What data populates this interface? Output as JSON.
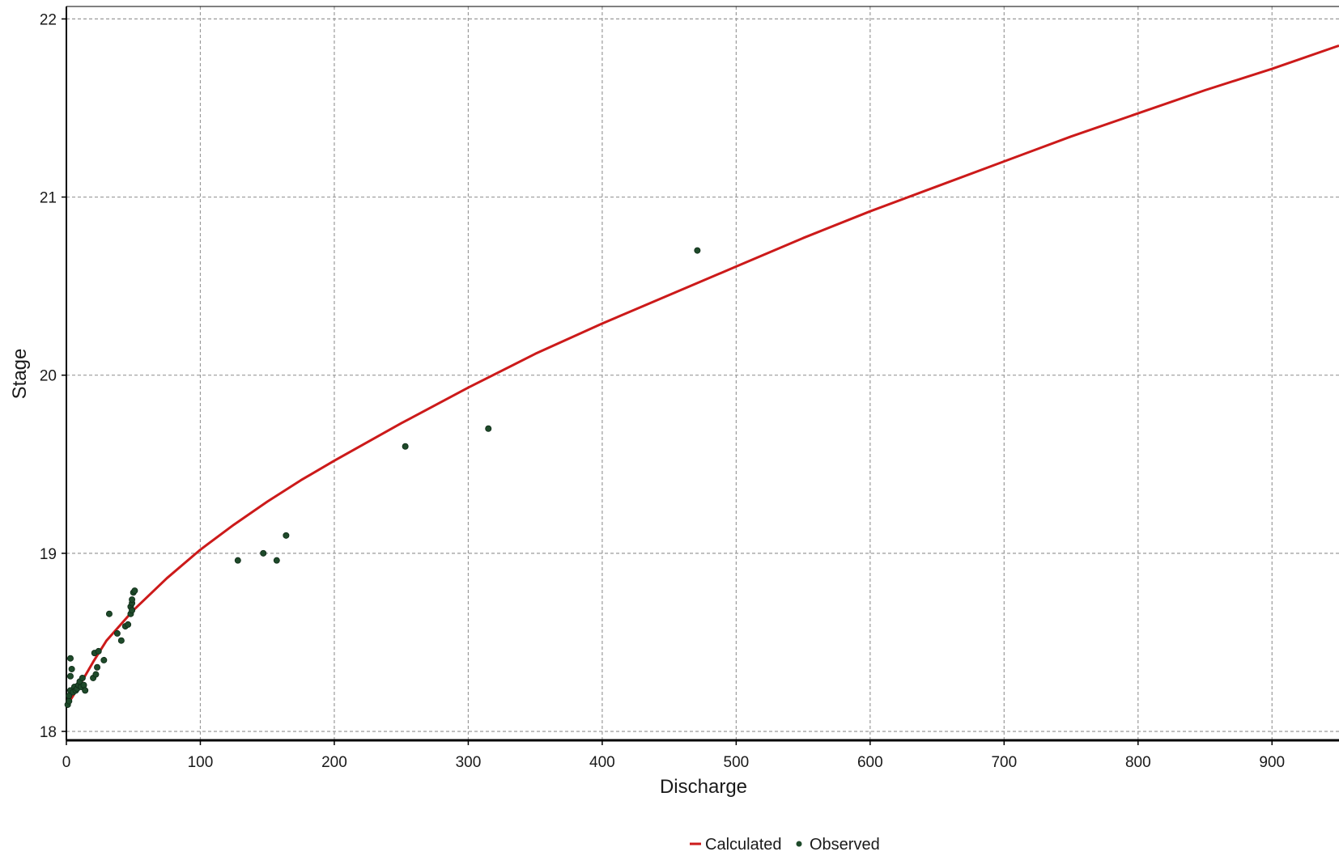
{
  "chart_data": {
    "type": "line",
    "title": "",
    "xlabel": "Discharge",
    "ylabel": "Stage",
    "xlim": [
      0,
      950
    ],
    "ylim": [
      17.95,
      22.07
    ],
    "x_ticks": [
      0,
      100,
      200,
      300,
      400,
      500,
      600,
      700,
      800,
      900
    ],
    "y_ticks": [
      18,
      19,
      20,
      21,
      22
    ],
    "grid": true,
    "legend_position": "bottom-center",
    "series": [
      {
        "name": "Calculated",
        "style": "line",
        "color": "#cc1a1a",
        "x": [
          0,
          5,
          10,
          20,
          30,
          50,
          75,
          100,
          125,
          150,
          175,
          200,
          250,
          300,
          350,
          400,
          450,
          500,
          550,
          600,
          650,
          700,
          750,
          800,
          850,
          900,
          950
        ],
        "y": [
          18.14,
          18.2,
          18.26,
          18.39,
          18.51,
          18.68,
          18.86,
          19.02,
          19.16,
          19.29,
          19.41,
          19.52,
          19.73,
          19.93,
          20.12,
          20.29,
          20.45,
          20.61,
          20.77,
          20.92,
          21.06,
          21.2,
          21.34,
          21.47,
          21.6,
          21.72,
          21.85
        ]
      },
      {
        "name": "Observed",
        "style": "scatter",
        "color": "#1e4a2a",
        "x": [
          1,
          2,
          2,
          3,
          3,
          3,
          4,
          5,
          6,
          7,
          8,
          9,
          10,
          11,
          12,
          13,
          14,
          20,
          21,
          22,
          23,
          24,
          28,
          32,
          38,
          41,
          44,
          46,
          48,
          48,
          49,
          49,
          49,
          50,
          51,
          128,
          147,
          157,
          164,
          253,
          315,
          471
        ],
        "y": [
          18.15,
          18.17,
          18.2,
          18.23,
          18.31,
          18.41,
          18.35,
          18.22,
          18.25,
          18.23,
          18.24,
          18.26,
          18.28,
          18.25,
          18.3,
          18.26,
          18.23,
          18.3,
          18.44,
          18.32,
          18.36,
          18.45,
          18.4,
          18.66,
          18.55,
          18.51,
          18.59,
          18.6,
          18.66,
          18.7,
          18.72,
          18.74,
          18.68,
          18.78,
          18.79,
          18.96,
          19.0,
          18.96,
          19.1,
          19.6,
          19.7,
          20.7
        ]
      }
    ]
  }
}
